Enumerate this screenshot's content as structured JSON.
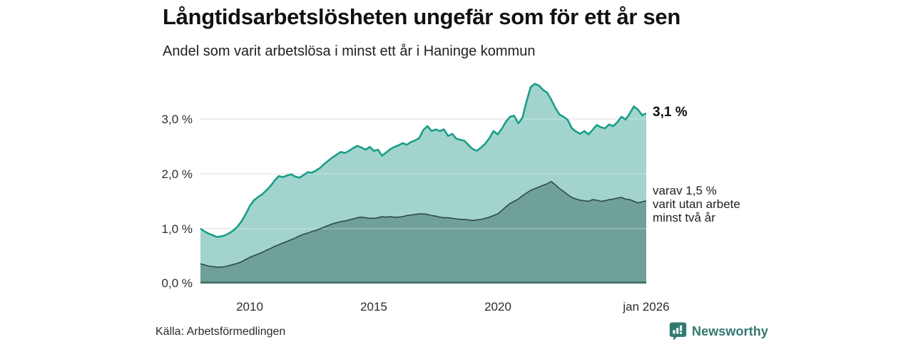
{
  "header": {
    "title": "Långtidsarbetslösheten ungefär som för ett år sen",
    "subtitle": "Andel som varit arbetslösa i minst ett år i Haninge kommun"
  },
  "chart_data": {
    "type": "area",
    "title": "Långtidsarbetslösheten ungefär som för ett år sen",
    "subtitle": "Andel som varit arbetslösa i minst ett år i Haninge kommun",
    "unit": "%",
    "x_start_year": 2008,
    "x_step_years": 0.16667,
    "x_ticks": [
      "2010",
      "2015",
      "2020",
      "jan 2026"
    ],
    "x_tick_years": [
      2010,
      2015,
      2020,
      2026
    ],
    "y_ticks": [
      "0,0 %",
      "1,0 %",
      "2,0 %",
      "3,0 %"
    ],
    "y_tick_values": [
      0,
      1,
      2,
      3
    ],
    "ylim": [
      0,
      3.74
    ],
    "grid": true,
    "legend_position": "none",
    "series": [
      {
        "name": "Andel arbetslösa minst ett år",
        "line_color": "#1a9e88",
        "fill_color": "#a2d4cd",
        "end_label": "3,1 %",
        "end_value": 3.1,
        "values": [
          1.0,
          0.95,
          0.91,
          0.88,
          0.85,
          0.86,
          0.88,
          0.92,
          0.97,
          1.04,
          1.14,
          1.27,
          1.42,
          1.52,
          1.58,
          1.63,
          1.7,
          1.78,
          1.88,
          1.96,
          1.94,
          1.97,
          1.99,
          1.95,
          1.93,
          1.98,
          2.03,
          2.02,
          2.06,
          2.11,
          2.18,
          2.24,
          2.3,
          2.35,
          2.4,
          2.38,
          2.42,
          2.47,
          2.51,
          2.48,
          2.44,
          2.49,
          2.42,
          2.44,
          2.33,
          2.39,
          2.45,
          2.49,
          2.52,
          2.56,
          2.53,
          2.58,
          2.61,
          2.65,
          2.8,
          2.87,
          2.78,
          2.81,
          2.78,
          2.81,
          2.69,
          2.73,
          2.64,
          2.62,
          2.6,
          2.52,
          2.45,
          2.42,
          2.48,
          2.55,
          2.65,
          2.78,
          2.72,
          2.82,
          2.95,
          3.04,
          3.06,
          2.92,
          3.02,
          3.32,
          3.58,
          3.64,
          3.61,
          3.53,
          3.48,
          3.35,
          3.2,
          3.08,
          3.04,
          2.98,
          2.83,
          2.77,
          2.73,
          2.78,
          2.72,
          2.8,
          2.89,
          2.85,
          2.83,
          2.9,
          2.87,
          2.94,
          3.04,
          2.99,
          3.1,
          3.23,
          3.17,
          3.07,
          3.1
        ]
      },
      {
        "name": "varav utan arbete minst två år",
        "line_color": "#2e4a47",
        "fill_color": "#6fa099",
        "end_label": "varav 1,5 % varit utan arbete minst två år",
        "end_value": 1.5,
        "values": [
          0.36,
          0.34,
          0.32,
          0.31,
          0.3,
          0.3,
          0.31,
          0.33,
          0.35,
          0.37,
          0.4,
          0.44,
          0.48,
          0.51,
          0.54,
          0.57,
          0.61,
          0.64,
          0.68,
          0.71,
          0.74,
          0.77,
          0.8,
          0.83,
          0.87,
          0.9,
          0.92,
          0.95,
          0.97,
          1.0,
          1.03,
          1.06,
          1.09,
          1.11,
          1.13,
          1.14,
          1.16,
          1.18,
          1.2,
          1.21,
          1.2,
          1.19,
          1.19,
          1.2,
          1.22,
          1.21,
          1.22,
          1.21,
          1.21,
          1.22,
          1.24,
          1.25,
          1.26,
          1.27,
          1.27,
          1.26,
          1.24,
          1.23,
          1.21,
          1.2,
          1.2,
          1.19,
          1.18,
          1.17,
          1.17,
          1.16,
          1.15,
          1.16,
          1.17,
          1.19,
          1.21,
          1.24,
          1.27,
          1.33,
          1.4,
          1.46,
          1.5,
          1.54,
          1.6,
          1.65,
          1.7,
          1.73,
          1.76,
          1.79,
          1.82,
          1.86,
          1.8,
          1.73,
          1.68,
          1.62,
          1.57,
          1.54,
          1.52,
          1.51,
          1.5,
          1.53,
          1.52,
          1.5,
          1.51,
          1.53,
          1.54,
          1.56,
          1.57,
          1.54,
          1.53,
          1.5,
          1.47,
          1.49,
          1.51
        ]
      }
    ],
    "annotations": {
      "upper_label": "3,1 %",
      "lower_label_lines": [
        "varav 1,5 %",
        "varit utan arbete",
        "minst två år"
      ]
    }
  },
  "footer": {
    "source": "Källa: Arbetsförmedlingen",
    "brand": "Newsworthy"
  },
  "colors": {
    "background": "#ffffff",
    "gridline": "#d9d9d9",
    "baseline": "#47726c",
    "upper_line": "#1a9e88",
    "upper_fill": "#a2d4cd",
    "lower_line": "#2e4a47",
    "lower_fill": "#6fa099",
    "brand_teal": "#33786f"
  }
}
